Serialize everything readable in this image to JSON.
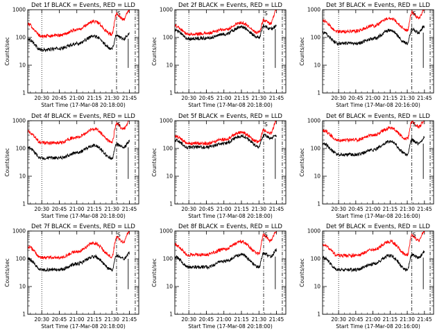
{
  "chart_data": [
    {
      "type": "line",
      "title": "Det 1f BLACK = Events, RED = LLD",
      "xlabel": "Start Time (17-Mar-08 20:18:00)",
      "ylabel": "Counts/sec",
      "yscale": "log",
      "ylim": [
        1,
        1000
      ],
      "xlim": [
        "20:18",
        "21:53"
      ],
      "x_ticks": [
        "20:30",
        "20:45",
        "21:00",
        "21:15",
        "21:30",
        "21:45"
      ],
      "y_ticks": [
        "1",
        "10",
        "100",
        "1000"
      ],
      "vertical_lines": [
        {
          "x": "20:30",
          "style": "dotted"
        },
        {
          "x": "21:34",
          "style": "dash-dot"
        },
        {
          "x": "21:50",
          "style": "dash-dot"
        }
      ],
      "saa_marker": "S",
      "series": [
        {
          "color": "#000000",
          "x": [
            "20:18",
            "20:30",
            "20:45",
            "21:00",
            "21:15",
            "21:30",
            "21:34",
            "21:40",
            "21:45"
          ],
          "values": [
            90,
            35,
            40,
            60,
            110,
            40,
            120,
            90,
            140
          ]
        },
        {
          "color": "#ff0000",
          "x": [
            "20:18",
            "20:30",
            "20:45",
            "21:00",
            "21:15",
            "21:30",
            "21:34",
            "21:40",
            "21:45"
          ],
          "values": [
            300,
            110,
            120,
            190,
            380,
            130,
            700,
            450,
            1000
          ]
        }
      ]
    },
    {
      "type": "line",
      "title": "Det 2f BLACK = Events, RED = LLD",
      "xlabel": "Start Time (17-Mar-08 20:18:00)",
      "ylabel": "Counts/sec",
      "yscale": "log",
      "ylim": [
        1,
        1000
      ],
      "xlim": [
        "20:18",
        "21:53"
      ],
      "x_ticks": [
        "20:30",
        "20:45",
        "21:00",
        "21:15",
        "21:30",
        "21:45"
      ],
      "y_ticks": [
        "1",
        "10",
        "100",
        "1000"
      ],
      "vertical_lines": [
        {
          "x": "20:30",
          "style": "dotted"
        },
        {
          "x": "21:34",
          "style": "dash-dot"
        },
        {
          "x": "21:50",
          "style": "dash-dot"
        }
      ],
      "saa_marker": "S",
      "series": [
        {
          "color": "#000000",
          "x": [
            "20:18",
            "20:30",
            "20:45",
            "21:00",
            "21:15",
            "21:30",
            "21:34",
            "21:40",
            "21:45"
          ],
          "values": [
            180,
            90,
            95,
            130,
            240,
            100,
            260,
            200,
            250
          ]
        },
        {
          "color": "#ff0000",
          "x": [
            "20:18",
            "20:30",
            "20:45",
            "21:00",
            "21:15",
            "21:30",
            "21:34",
            "21:40",
            "21:45"
          ],
          "values": [
            260,
            130,
            140,
            190,
            340,
            150,
            420,
            320,
            1000
          ]
        }
      ]
    },
    {
      "type": "line",
      "title": "Det 3f BLACK = Events, RED = LLD",
      "xlabel": "Start Time (17-Mar-08 20:16:00)",
      "ylabel": "Counts/sec",
      "yscale": "log",
      "ylim": [
        1,
        1000
      ],
      "xlim": [
        "20:16",
        "21:53"
      ],
      "x_ticks": [
        "20:30",
        "20:45",
        "21:00",
        "21:15",
        "21:30",
        "21:45"
      ],
      "y_ticks": [
        "1",
        "10",
        "100",
        "1000"
      ],
      "vertical_lines": [
        {
          "x": "20:30",
          "style": "dotted"
        },
        {
          "x": "21:34",
          "style": "dash-dot"
        },
        {
          "x": "21:50",
          "style": "dash-dot"
        }
      ],
      "saa_marker": "S",
      "series": [
        {
          "color": "#000000",
          "x": [
            "20:16",
            "20:30",
            "20:45",
            "21:00",
            "21:15",
            "21:30",
            "21:34",
            "21:40",
            "21:45"
          ],
          "values": [
            150,
            60,
            60,
            90,
            180,
            60,
            200,
            150,
            250
          ]
        },
        {
          "color": "#ff0000",
          "x": [
            "20:16",
            "20:30",
            "20:45",
            "21:00",
            "21:15",
            "21:30",
            "21:34",
            "21:40",
            "21:45"
          ],
          "values": [
            400,
            160,
            170,
            260,
            500,
            180,
            800,
            500,
            1000
          ]
        }
      ]
    },
    {
      "type": "line",
      "title": "Det 4f BLACK = Events, RED = LLD",
      "xlabel": "Start Time (17-Mar-08 20:18:00)",
      "ylabel": "Counts/sec",
      "yscale": "log",
      "ylim": [
        1,
        1000
      ],
      "xlim": [
        "20:18",
        "21:53"
      ],
      "x_ticks": [
        "20:30",
        "20:45",
        "21:00",
        "21:15",
        "21:30",
        "21:45"
      ],
      "y_ticks": [
        "1",
        "10",
        "100",
        "1000"
      ],
      "vertical_lines": [
        {
          "x": "20:30",
          "style": "dotted"
        },
        {
          "x": "21:34",
          "style": "dash-dot"
        },
        {
          "x": "21:50",
          "style": "dash-dot"
        }
      ],
      "saa_marker": "S",
      "series": [
        {
          "color": "#000000",
          "x": [
            "20:18",
            "20:30",
            "20:45",
            "21:00",
            "21:15",
            "21:30",
            "21:34",
            "21:40",
            "21:45"
          ],
          "values": [
            110,
            45,
            45,
            70,
            130,
            45,
            140,
            110,
            180
          ]
        },
        {
          "color": "#ff0000",
          "x": [
            "20:18",
            "20:30",
            "20:45",
            "21:00",
            "21:15",
            "21:30",
            "21:34",
            "21:40",
            "21:45"
          ],
          "values": [
            400,
            160,
            160,
            260,
            500,
            170,
            800,
            500,
            1000
          ]
        }
      ]
    },
    {
      "type": "line",
      "title": "Det 5f BLACK = Events, RED = LLD",
      "xlabel": "Start Time (17-Mar-08 20:18:00)",
      "ylabel": "Counts/sec",
      "yscale": "log",
      "ylim": [
        1,
        1000
      ],
      "xlim": [
        "20:18",
        "21:53"
      ],
      "x_ticks": [
        "20:30",
        "20:45",
        "21:00",
        "21:15",
        "21:30",
        "21:45"
      ],
      "y_ticks": [
        "1",
        "10",
        "100",
        "1000"
      ],
      "vertical_lines": [
        {
          "x": "20:30",
          "style": "dotted"
        },
        {
          "x": "21:34",
          "style": "dash-dot"
        },
        {
          "x": "21:50",
          "style": "dash-dot"
        }
      ],
      "saa_marker": "S",
      "series": [
        {
          "color": "#000000",
          "x": [
            "20:18",
            "20:30",
            "20:45",
            "21:00",
            "21:15",
            "21:30",
            "21:34",
            "21:40",
            "21:45"
          ],
          "values": [
            200,
            110,
            110,
            150,
            280,
            120,
            300,
            230,
            300
          ]
        },
        {
          "color": "#ff0000",
          "x": [
            "20:18",
            "20:30",
            "20:45",
            "21:00",
            "21:15",
            "21:30",
            "21:34",
            "21:40",
            "21:45"
          ],
          "values": [
            280,
            150,
            150,
            210,
            380,
            170,
            450,
            350,
            1000
          ]
        }
      ]
    },
    {
      "type": "line",
      "title": "Det 6f BLACK = Events, RED = LLD",
      "xlabel": "Start Time (17-Mar-08 20:16:00)",
      "ylabel": "Counts/sec",
      "yscale": "log",
      "ylim": [
        1,
        1000
      ],
      "xlim": [
        "20:16",
        "21:53"
      ],
      "x_ticks": [
        "20:30",
        "20:45",
        "21:00",
        "21:15",
        "21:30",
        "21:45"
      ],
      "y_ticks": [
        "1",
        "10",
        "100",
        "1000"
      ],
      "vertical_lines": [
        {
          "x": "20:30",
          "style": "dotted"
        },
        {
          "x": "21:34",
          "style": "dash-dot"
        },
        {
          "x": "21:50",
          "style": "dash-dot"
        }
      ],
      "saa_marker": "S",
      "series": [
        {
          "color": "#000000",
          "x": [
            "20:16",
            "20:30",
            "20:45",
            "21:00",
            "21:15",
            "21:30",
            "21:34",
            "21:40",
            "21:45"
          ],
          "values": [
            150,
            60,
            60,
            90,
            180,
            60,
            200,
            150,
            250
          ]
        },
        {
          "color": "#ff0000",
          "x": [
            "20:16",
            "20:30",
            "20:45",
            "21:00",
            "21:15",
            "21:30",
            "21:34",
            "21:40",
            "21:45"
          ],
          "values": [
            450,
            200,
            200,
            300,
            550,
            220,
            900,
            600,
            1000
          ]
        }
      ]
    },
    {
      "type": "line",
      "title": "Det 7f BLACK = Events, RED = LLD",
      "xlabel": "Start Time (17-Mar-08 20:18:00)",
      "ylabel": "Counts/sec",
      "yscale": "log",
      "ylim": [
        1,
        1000
      ],
      "xlim": [
        "20:18",
        "21:53"
      ],
      "x_ticks": [
        "20:30",
        "20:45",
        "21:00",
        "21:15",
        "21:30",
        "21:45"
      ],
      "y_ticks": [
        "1",
        "10",
        "100",
        "1000"
      ],
      "vertical_lines": [
        {
          "x": "20:30",
          "style": "dotted"
        },
        {
          "x": "21:34",
          "style": "dash-dot"
        },
        {
          "x": "21:50",
          "style": "dash-dot"
        }
      ],
      "saa_marker": "S",
      "series": [
        {
          "color": "#000000",
          "x": [
            "20:18",
            "20:30",
            "20:45",
            "21:00",
            "21:15",
            "21:30",
            "21:34",
            "21:40",
            "21:45"
          ],
          "values": [
            100,
            40,
            40,
            65,
            120,
            40,
            130,
            100,
            160
          ]
        },
        {
          "color": "#ff0000",
          "x": [
            "20:18",
            "20:30",
            "20:45",
            "21:00",
            "21:15",
            "21:30",
            "21:34",
            "21:40",
            "21:45"
          ],
          "values": [
            280,
            110,
            110,
            180,
            360,
            120,
            600,
            400,
            1000
          ]
        }
      ]
    },
    {
      "type": "line",
      "title": "Det 8f BLACK = Events, RED = LLD",
      "xlabel": "Start Time (17-Mar-08 20:18:00)",
      "ylabel": "Counts/sec",
      "yscale": "log",
      "ylim": [
        1,
        1000
      ],
      "xlim": [
        "20:18",
        "21:53"
      ],
      "x_ticks": [
        "20:30",
        "20:45",
        "21:00",
        "21:15",
        "21:30",
        "21:45"
      ],
      "y_ticks": [
        "1",
        "10",
        "100",
        "1000"
      ],
      "vertical_lines": [
        {
          "x": "20:30",
          "style": "dotted"
        },
        {
          "x": "21:34",
          "style": "dash-dot"
        },
        {
          "x": "21:50",
          "style": "dash-dot"
        }
      ],
      "saa_marker": "S",
      "series": [
        {
          "color": "#000000",
          "x": [
            "20:18",
            "20:30",
            "20:45",
            "21:00",
            "21:15",
            "21:30",
            "21:34",
            "21:40",
            "21:45"
          ],
          "values": [
            120,
            50,
            50,
            80,
            140,
            50,
            160,
            120,
            200
          ]
        },
        {
          "color": "#ff0000",
          "x": [
            "20:18",
            "20:30",
            "20:45",
            "21:00",
            "21:15",
            "21:30",
            "21:34",
            "21:40",
            "21:45"
          ],
          "values": [
            330,
            140,
            140,
            220,
            420,
            150,
            700,
            450,
            1000
          ]
        }
      ]
    },
    {
      "type": "line",
      "title": "Det 9f BLACK = Events, RED = LLD",
      "xlabel": "Start Time (17-Mar-08 20:16:00)",
      "ylabel": "Counts/sec",
      "yscale": "log",
      "ylim": [
        1,
        1000
      ],
      "xlim": [
        "20:16",
        "21:53"
      ],
      "x_ticks": [
        "20:30",
        "20:45",
        "21:00",
        "21:15",
        "21:30",
        "21:45"
      ],
      "y_ticks": [
        "1",
        "10",
        "100",
        "1000"
      ],
      "vertical_lines": [
        {
          "x": "20:30",
          "style": "dotted"
        },
        {
          "x": "21:34",
          "style": "dash-dot"
        },
        {
          "x": "21:50",
          "style": "dash-dot"
        }
      ],
      "saa_marker": "S",
      "series": [
        {
          "color": "#000000",
          "x": [
            "20:16",
            "20:30",
            "20:45",
            "21:00",
            "21:15",
            "21:30",
            "21:34",
            "21:40",
            "21:45"
          ],
          "values": [
            110,
            40,
            40,
            65,
            130,
            40,
            140,
            110,
            180
          ]
        },
        {
          "color": "#ff0000",
          "x": [
            "20:16",
            "20:30",
            "20:45",
            "21:00",
            "21:15",
            "21:30",
            "21:34",
            "21:40",
            "21:45"
          ],
          "values": [
            330,
            130,
            130,
            210,
            420,
            140,
            700,
            450,
            1000
          ]
        }
      ]
    }
  ]
}
